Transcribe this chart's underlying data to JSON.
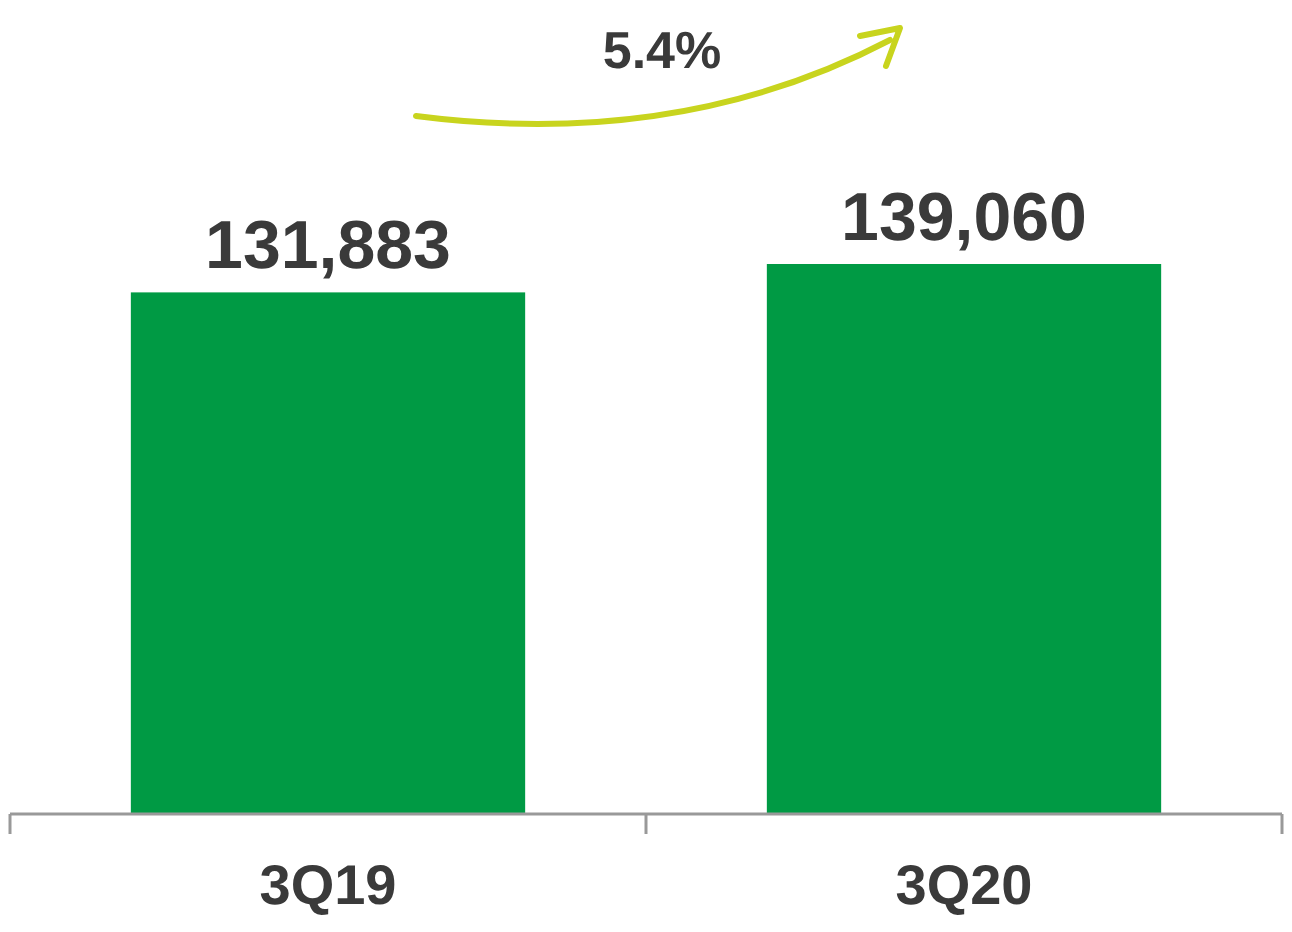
{
  "chart_data": {
    "type": "bar",
    "categories": [
      "3Q19",
      "3Q20"
    ],
    "values": [
      131883,
      139060
    ],
    "value_labels": [
      "131,883",
      "139,060"
    ],
    "color": "#009a44",
    "annotations": [
      "5.4%"
    ]
  }
}
